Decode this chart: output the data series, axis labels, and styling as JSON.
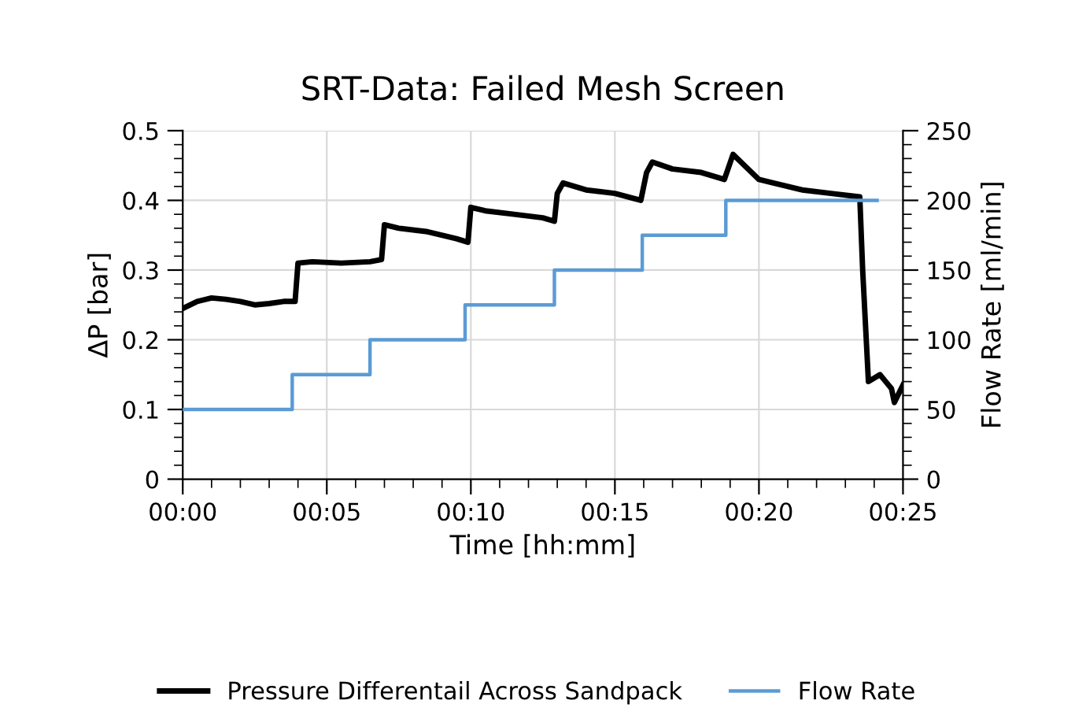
{
  "chart_data": {
    "type": "line",
    "title": "SRT-Data: Failed Mesh Screen",
    "xlabel": "Time [hh:mm]",
    "ylabel": "ΔP [bar]",
    "y2label": "Flow Rate [ml/min]",
    "xlim": [
      0,
      25
    ],
    "xticks": [
      {
        "value": 0,
        "label": "00:00"
      },
      {
        "value": 5,
        "label": "00:05"
      },
      {
        "value": 10,
        "label": "00:10"
      },
      {
        "value": 15,
        "label": "00:15"
      },
      {
        "value": 20,
        "label": "00:20"
      },
      {
        "value": 25,
        "label": "00:25"
      }
    ],
    "ylim": [
      0,
      0.5
    ],
    "yticks": [
      0,
      0.1,
      0.2,
      0.3,
      0.4,
      0.5
    ],
    "y2lim": [
      0,
      250
    ],
    "y2ticks": [
      0,
      50,
      100,
      150,
      200,
      250
    ],
    "grid": true,
    "legend": "bottom",
    "line_style": "solid",
    "marker": "none",
    "series": [
      {
        "name": "Pressure Differentail Across Sandpack",
        "color": "#000000",
        "x": [
          0,
          0.5,
          1,
          1.5,
          2,
          2.5,
          3,
          3.5,
          3.9,
          4.0,
          4.5,
          5.5,
          6.5,
          6.9,
          7.0,
          7.5,
          8.5,
          9.5,
          9.9,
          10.0,
          10.5,
          11.5,
          12.5,
          12.9,
          13.0,
          13.2,
          14,
          15,
          15.9,
          16.1,
          16.3,
          17,
          18,
          18.8,
          19.1,
          19.5,
          20,
          20.5,
          21.5,
          22.5,
          23.5,
          23.6,
          23.8,
          24.2,
          24.4,
          24.6,
          24.7,
          25
        ],
        "values": [
          0.245,
          0.255,
          0.26,
          0.258,
          0.255,
          0.25,
          0.252,
          0.255,
          0.255,
          0.31,
          0.312,
          0.31,
          0.312,
          0.315,
          0.365,
          0.36,
          0.355,
          0.345,
          0.34,
          0.39,
          0.385,
          0.38,
          0.375,
          0.37,
          0.41,
          0.425,
          0.415,
          0.41,
          0.4,
          0.44,
          0.455,
          0.445,
          0.44,
          0.43,
          0.466,
          0.45,
          0.43,
          0.425,
          0.415,
          0.41,
          0.405,
          0.3,
          0.14,
          0.15,
          0.14,
          0.13,
          0.11,
          0.135
        ]
      },
      {
        "name": "Flow Rate",
        "color": "#5b9bd5",
        "type": "step",
        "axis": "y2",
        "x": [
          0,
          3.8,
          6.5,
          9.8,
          12.9,
          15.95,
          18.85,
          24.1
        ],
        "values": [
          50,
          75,
          100,
          125,
          150,
          175,
          200,
          200
        ]
      }
    ]
  }
}
